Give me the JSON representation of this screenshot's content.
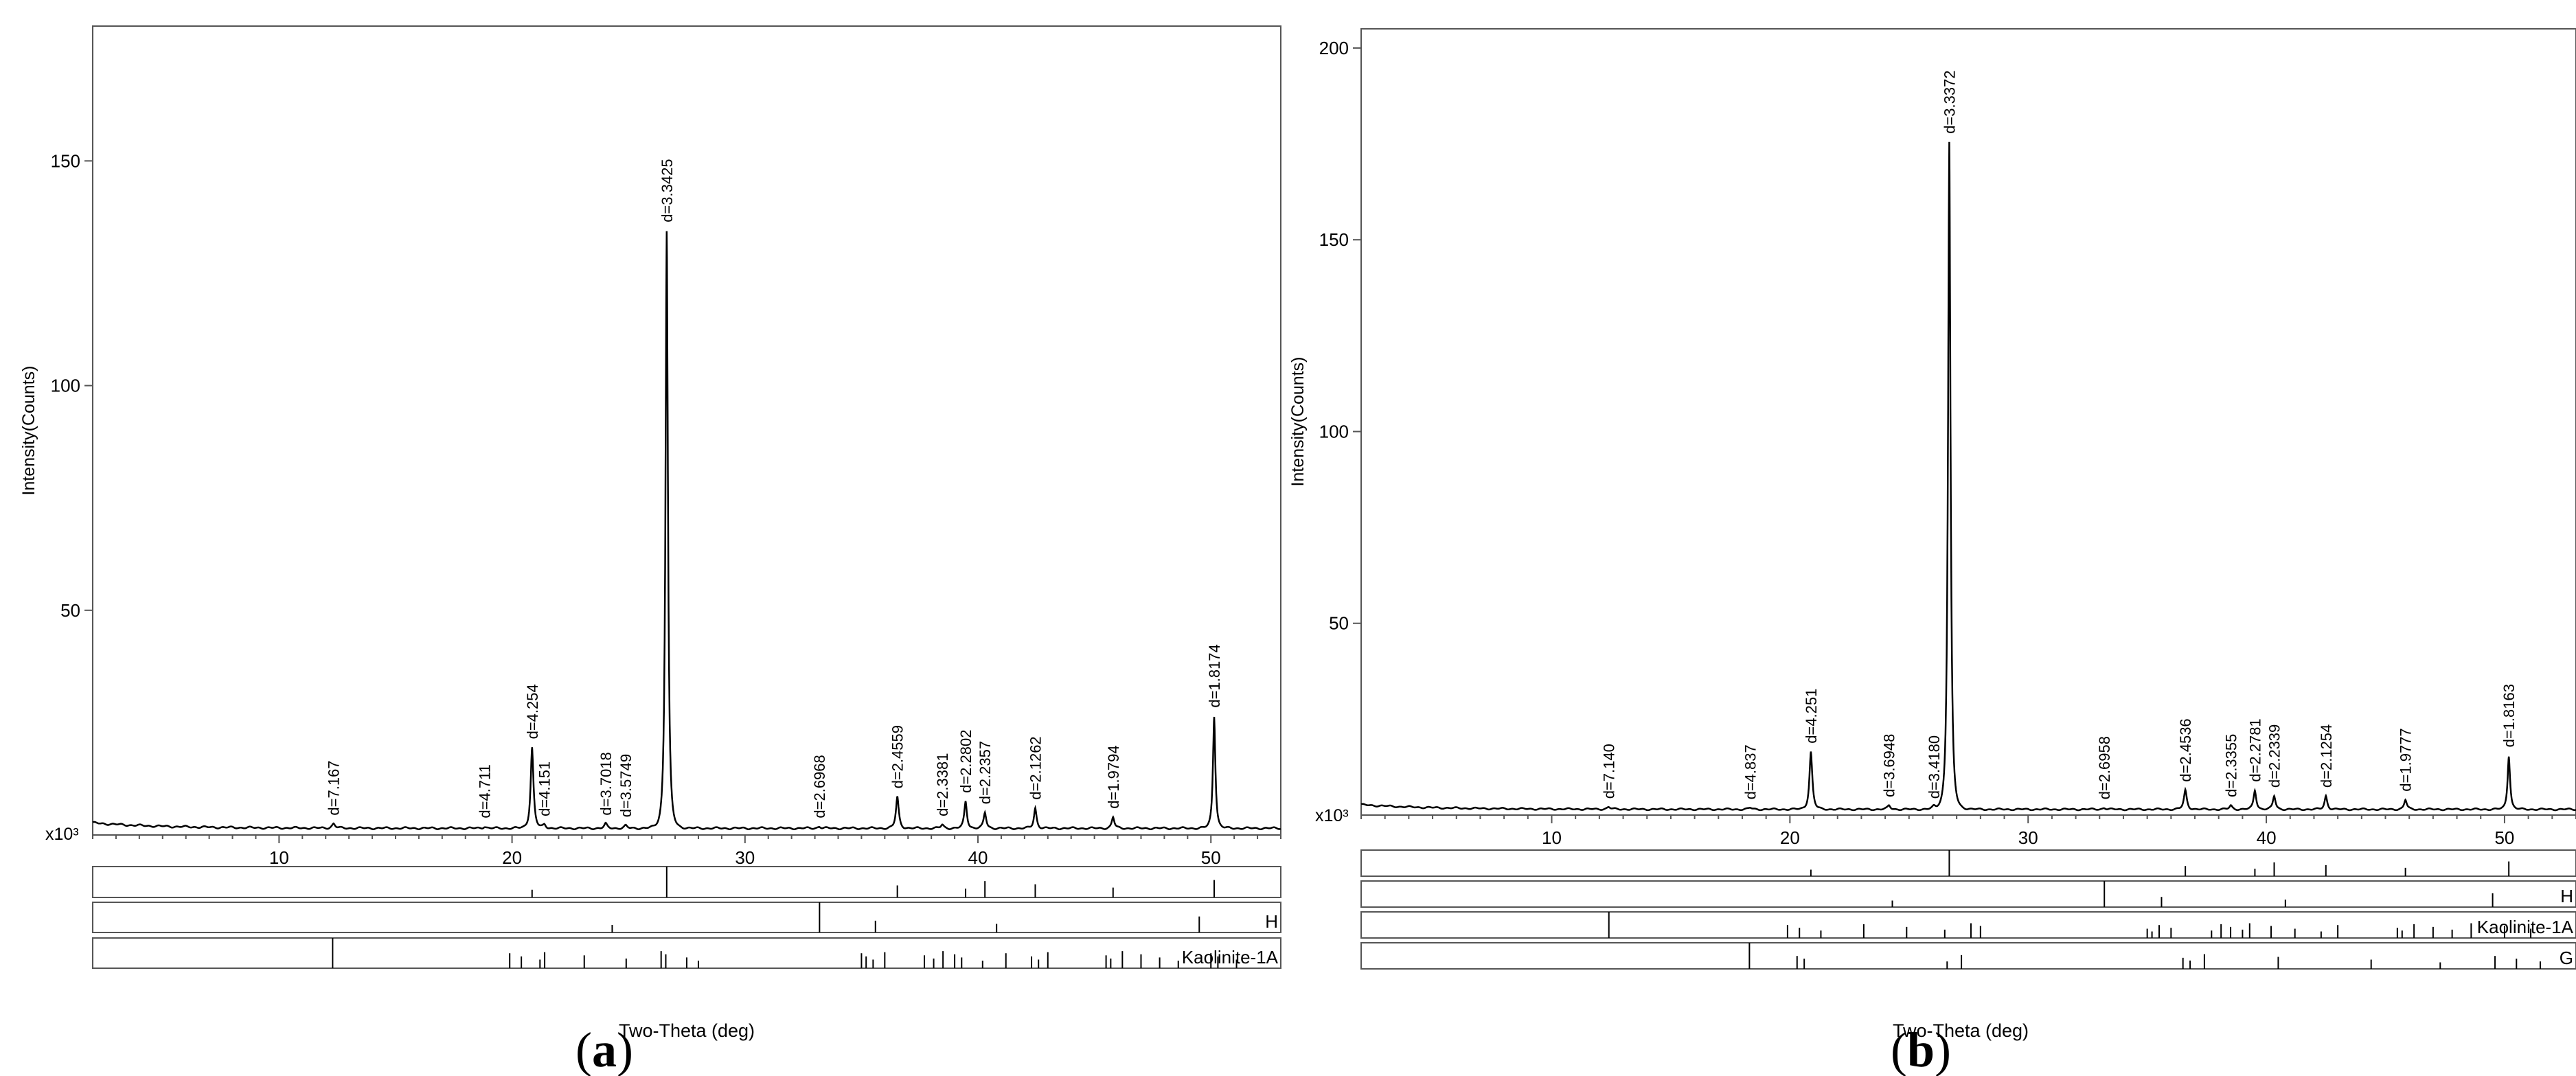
{
  "chart_data": [
    {
      "type": "line",
      "panel_label": "a",
      "xlabel": "Two-Theta (deg)",
      "ylabel": "Intensity(Counts)",
      "y_multiplier_label": "x10³",
      "xlim": [
        2,
        53
      ],
      "ylim": [
        0,
        180
      ],
      "xticks": [
        10,
        20,
        30,
        40,
        50
      ],
      "yticks": [
        50,
        100,
        150
      ],
      "baseline": 1.5,
      "peaks": [
        {
          "x": 12.34,
          "y": 1.0,
          "w": 0.18,
          "label": "d=7.167"
        },
        {
          "x": 18.82,
          "y": 0.4,
          "w": 0.18,
          "label": "d=4.711"
        },
        {
          "x": 20.86,
          "y": 18.0,
          "w": 0.16,
          "label": "d=4.254"
        },
        {
          "x": 21.39,
          "y": 0.8,
          "w": 0.16,
          "label": "d=4.151"
        },
        {
          "x": 24.02,
          "y": 1.0,
          "w": 0.16,
          "label": "d=3.7018"
        },
        {
          "x": 24.88,
          "y": 0.6,
          "w": 0.16,
          "label": "d=3.5749"
        },
        {
          "x": 26.64,
          "y": 133.0,
          "w": 0.14,
          "label": "d=3.3425"
        },
        {
          "x": 33.19,
          "y": 0.4,
          "w": 0.18,
          "label": "d=2.6968"
        },
        {
          "x": 36.54,
          "y": 7.0,
          "w": 0.16,
          "label": "d=2.4559"
        },
        {
          "x": 38.47,
          "y": 0.8,
          "w": 0.16,
          "label": "d=2.3381"
        },
        {
          "x": 39.47,
          "y": 6.0,
          "w": 0.15,
          "label": "d=2.2802"
        },
        {
          "x": 40.3,
          "y": 3.5,
          "w": 0.15,
          "label": "d=2.2357"
        },
        {
          "x": 42.46,
          "y": 4.5,
          "w": 0.15,
          "label": "d=2.1262"
        },
        {
          "x": 45.8,
          "y": 2.5,
          "w": 0.15,
          "label": "d=1.9794"
        },
        {
          "x": 50.14,
          "y": 25.0,
          "w": 0.14,
          "label": "d=1.8174"
        }
      ],
      "reference_bars": [
        {
          "name": "",
          "lines": [
            20.86,
            26.64,
            36.54,
            39.47,
            40.3,
            42.46,
            45.8,
            50.14
          ]
        },
        {
          "name": "H",
          "lines": [
            24.3,
            33.2,
            35.6,
            40.8,
            49.5
          ]
        },
        {
          "name": "Kaolinite-1A",
          "lines": [
            12.3,
            19.9,
            20.4,
            21.2,
            21.4,
            23.1,
            24.9,
            26.4,
            26.6,
            27.5,
            28.0,
            35.0,
            35.2,
            35.5,
            36.0,
            37.7,
            38.1,
            38.5,
            39.0,
            39.3,
            40.2,
            41.2,
            42.3,
            42.6,
            43.0,
            45.5,
            45.7,
            46.2,
            47.0,
            47.8,
            48.6,
            50.0,
            50.3,
            51.1
          ]
        }
      ]
    },
    {
      "type": "line",
      "panel_label": "b",
      "xlabel": "Two-Theta (deg)",
      "ylabel": "Intensity(Counts)",
      "y_multiplier_label": "x10³",
      "xlim": [
        2,
        53
      ],
      "ylim": [
        0,
        205
      ],
      "xticks": [
        10,
        20,
        30,
        40,
        50
      ],
      "yticks": [
        50,
        100,
        150,
        200
      ],
      "baseline": 1.5,
      "peaks": [
        {
          "x": 12.39,
          "y": 0.6,
          "w": 0.18,
          "label": "d=7.140"
        },
        {
          "x": 18.33,
          "y": 0.4,
          "w": 0.18,
          "label": "d=4.837"
        },
        {
          "x": 20.88,
          "y": 15.0,
          "w": 0.16,
          "label": "d=4.251"
        },
        {
          "x": 24.16,
          "y": 1.0,
          "w": 0.16,
          "label": "d=3.6948"
        },
        {
          "x": 26.04,
          "y": 0.6,
          "w": 0.16,
          "label": "d=3.4180"
        },
        {
          "x": 26.69,
          "y": 174.0,
          "w": 0.14,
          "label": "d=3.3372"
        },
        {
          "x": 33.19,
          "y": 0.4,
          "w": 0.18,
          "label": "d=2.6958"
        },
        {
          "x": 36.6,
          "y": 5.0,
          "w": 0.16,
          "label": "d=2.4536"
        },
        {
          "x": 38.51,
          "y": 1.0,
          "w": 0.16,
          "label": "d=2.3355"
        },
        {
          "x": 39.52,
          "y": 5.0,
          "w": 0.15,
          "label": "d=2.2781"
        },
        {
          "x": 40.33,
          "y": 3.5,
          "w": 0.15,
          "label": "d=2.2339"
        },
        {
          "x": 42.5,
          "y": 3.5,
          "w": 0.15,
          "label": "d=2.1254"
        },
        {
          "x": 45.84,
          "y": 2.5,
          "w": 0.15,
          "label": "d=1.9777"
        },
        {
          "x": 50.18,
          "y": 14.0,
          "w": 0.14,
          "label": "d=1.8163"
        }
      ],
      "reference_bars": [
        {
          "name": "",
          "lines": [
            20.88,
            26.69,
            36.6,
            39.52,
            40.33,
            42.5,
            45.84,
            50.18
          ]
        },
        {
          "name": "H",
          "lines": [
            24.3,
            33.2,
            35.6,
            40.8,
            49.5
          ]
        },
        {
          "name": "Kaolinite-1A",
          "lines": [
            12.4,
            19.9,
            20.4,
            21.3,
            23.1,
            24.9,
            26.5,
            27.6,
            28.0,
            35.0,
            35.2,
            35.5,
            36.0,
            37.7,
            38.1,
            38.5,
            39.0,
            39.3,
            40.2,
            41.2,
            42.3,
            43.0,
            45.5,
            45.7,
            46.2,
            47.0,
            47.8,
            48.6,
            50.0,
            51.1
          ]
        },
        {
          "name": "G",
          "lines": [
            18.3,
            20.3,
            20.6,
            26.6,
            27.2,
            36.5,
            36.8,
            37.4,
            40.5,
            44.4,
            47.3,
            49.6,
            50.5,
            51.5
          ]
        }
      ]
    }
  ]
}
